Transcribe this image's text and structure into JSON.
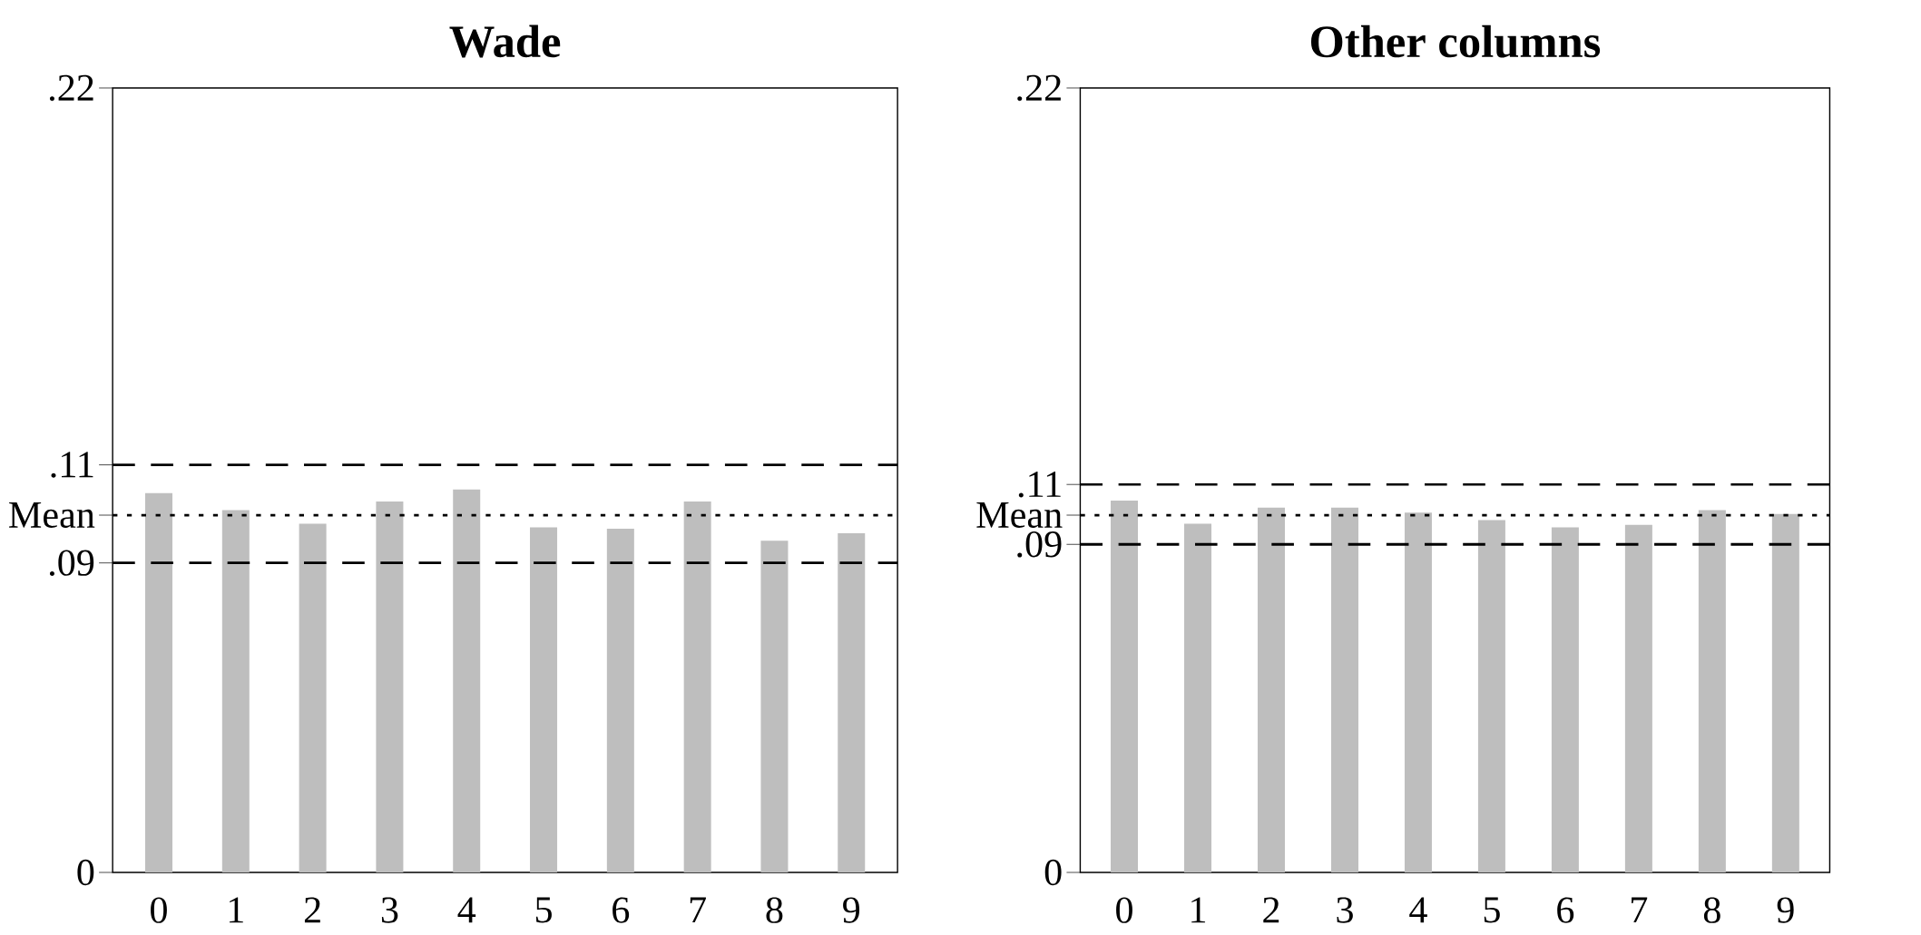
{
  "chart_data": [
    {
      "type": "bar",
      "title": "Wade",
      "categories": [
        "0",
        "1",
        "2",
        "3",
        "4",
        "5",
        "6",
        "7",
        "8",
        "9"
      ],
      "values": [
        0.1064,
        0.1016,
        0.0978,
        0.104,
        0.1074,
        0.0968,
        0.0964,
        0.104,
        0.093,
        0.0951
      ],
      "color": "#bebebe",
      "ylim": [
        0,
        0.22
      ],
      "yticks": [
        0,
        {
          "value": 0.0868,
          "label": ".09"
        },
        {
          "value": 0.1002,
          "label": "Mean"
        },
        {
          "value": 0.1143,
          "label": ".11"
        },
        {
          "value": 0.22,
          "label": ".22"
        }
      ],
      "ref_lines": [
        {
          "axis": "y",
          "value": 0.1143,
          "line_style": "dashed"
        },
        {
          "axis": "y",
          "value": 0.1002,
          "line_style": "dotted"
        },
        {
          "axis": "y",
          "value": 0.0868,
          "line_style": "dashed"
        }
      ]
    },
    {
      "type": "bar",
      "title": "Other columns",
      "categories": [
        "0",
        "1",
        "2",
        "3",
        "4",
        "5",
        "6",
        "7",
        "8",
        "9"
      ],
      "values": [
        0.1043,
        0.0978,
        0.1023,
        0.1023,
        0.1009,
        0.0988,
        0.0968,
        0.0975,
        0.1016,
        0.1005
      ],
      "color": "#bebebe",
      "ylim": [
        0,
        0.22
      ],
      "yticks": [
        0,
        {
          "value": 0.092,
          "label": ".09"
        },
        {
          "value": 0.1002,
          "label": "Mean"
        },
        {
          "value": 0.1088,
          "label": ".11"
        },
        {
          "value": 0.22,
          "label": ".22"
        }
      ],
      "ref_lines": [
        {
          "axis": "y",
          "value": 0.1088,
          "line_style": "dashed"
        },
        {
          "axis": "y",
          "value": 0.1002,
          "line_style": "dotted"
        },
        {
          "axis": "y",
          "value": 0.092,
          "line_style": "dashed"
        }
      ]
    }
  ]
}
